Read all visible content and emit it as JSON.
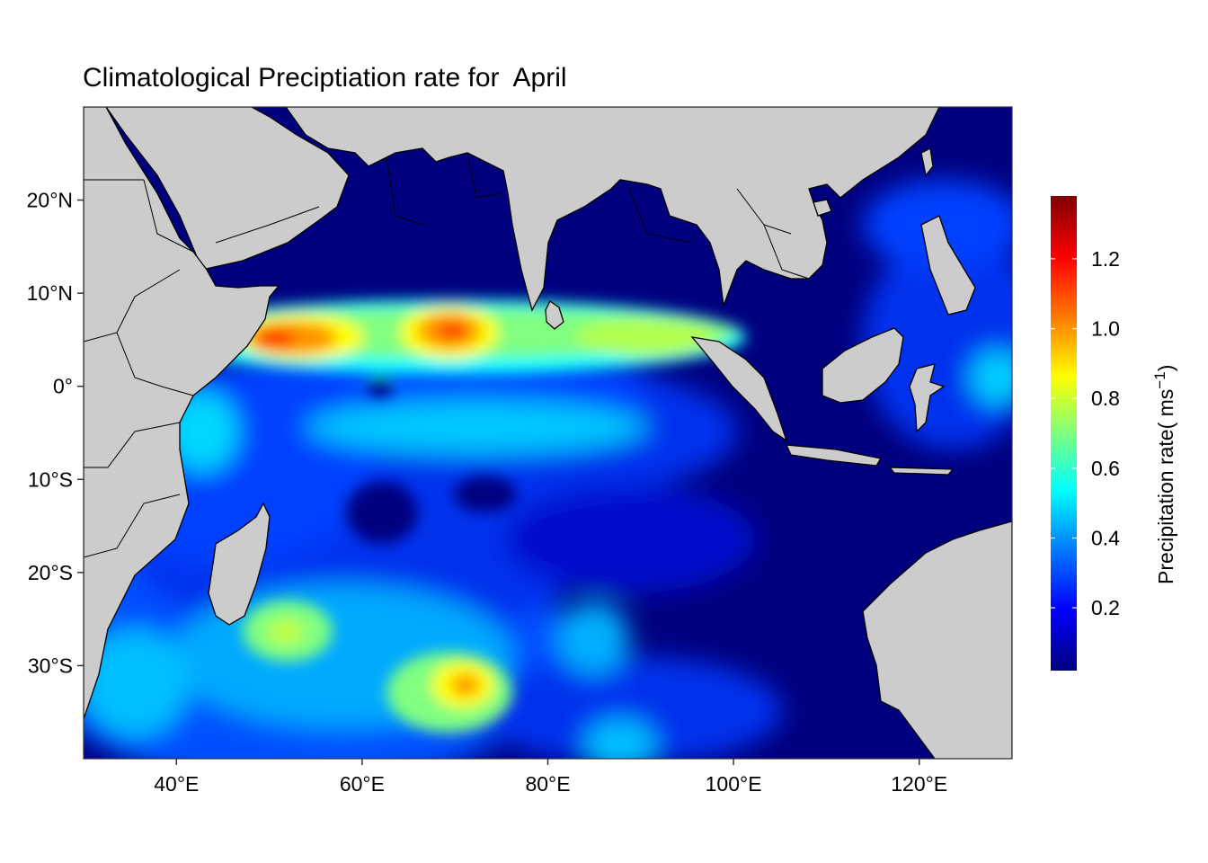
{
  "title": "Climatological Preciptiation rate for  April",
  "chart_data": {
    "type": "heatmap",
    "title": "Climatological Preciptiation rate for  April",
    "x_axis": {
      "range": [
        30,
        130
      ],
      "ticks": [
        {
          "value": 40,
          "label": "40°E"
        },
        {
          "value": 60,
          "label": "60°E"
        },
        {
          "value": 80,
          "label": "80°E"
        },
        {
          "value": 100,
          "label": "100°E"
        },
        {
          "value": 120,
          "label": "120°E"
        }
      ]
    },
    "y_axis": {
      "range": [
        -40,
        30
      ],
      "ticks": [
        {
          "value": 20,
          "label": "20°N"
        },
        {
          "value": 10,
          "label": "10°N"
        },
        {
          "value": 0,
          "label": "0°"
        },
        {
          "value": -10,
          "label": "10°S"
        },
        {
          "value": -20,
          "label": "20°S"
        },
        {
          "value": -30,
          "label": "30°S"
        }
      ]
    },
    "colorbar": {
      "label_main": "Precipitation rate( ms",
      "label_sup": "−1",
      "label_end": ")",
      "range": [
        0.02,
        1.38
      ],
      "ticks": [
        {
          "value": 0.2,
          "label": "0.2"
        },
        {
          "value": 0.4,
          "label": "0.4"
        },
        {
          "value": 0.6,
          "label": "0.6"
        },
        {
          "value": 0.8,
          "label": "0.8"
        },
        {
          "value": 1.0,
          "label": "1.0"
        },
        {
          "value": 1.2,
          "label": "1.2"
        }
      ],
      "colors": [
        "#00007f",
        "#0000ff",
        "#007fff",
        "#00ffff",
        "#7fff7f",
        "#ffff00",
        "#ff7f00",
        "#ff0000",
        "#7f0000"
      ]
    },
    "precipitation_features": [
      {
        "feature": "background",
        "lon": 90,
        "lat": -10,
        "value": 0.05
      },
      {
        "feature": "Somali coast maximum",
        "lon": 51,
        "lat": 5,
        "value": 1.15
      },
      {
        "feature": "central Arabian Sea maximum",
        "lon": 70,
        "lat": 6,
        "value": 1.1
      },
      {
        "feature": "Andaman band",
        "lon": 88,
        "lat": 5,
        "value": 0.75
      },
      {
        "feature": "southern Indian Ocean maximum",
        "lon": 71,
        "lat": -32,
        "value": 1.0
      },
      {
        "feature": "Madagascar southeast high",
        "lon": 52,
        "lat": -26,
        "value": 0.75
      },
      {
        "feature": "Kenya coast",
        "lon": 42,
        "lat": -5,
        "value": 0.5
      },
      {
        "feature": "equatorial band",
        "lon": 75,
        "lat": -4,
        "value": 0.45
      }
    ],
    "land_color": "#cccccc",
    "ocean_dominant_color": "#00007f"
  }
}
